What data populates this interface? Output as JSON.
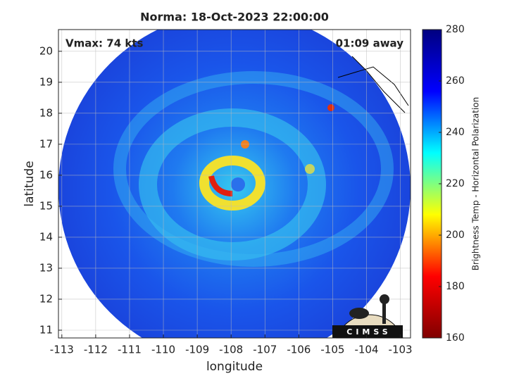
{
  "chart_data": {
    "type": "map",
    "title": "Norma: 18-Oct-2023 22:00:00",
    "xlabel": "longitude",
    "ylabel": "latitude",
    "xlim": [
      -113.1,
      -102.7
    ],
    "ylim": [
      10.75,
      20.7
    ],
    "xticks": [
      -113,
      -112,
      -111,
      -110,
      -109,
      -108,
      -107,
      -106,
      -105,
      -104,
      -103
    ],
    "yticks": [
      11,
      12,
      13,
      14,
      15,
      16,
      17,
      18,
      19,
      20
    ],
    "grid": true,
    "annotations": [
      "Vmax: 74 kts",
      "01:09 away"
    ],
    "logo": "CIMSS",
    "colorbar": {
      "label": "Brightness Temp - Horizontal Polarization",
      "lim": [
        160,
        280
      ],
      "ticks": [
        160,
        180,
        200,
        220,
        240,
        260,
        280
      ],
      "colormap": "jet"
    }
  }
}
